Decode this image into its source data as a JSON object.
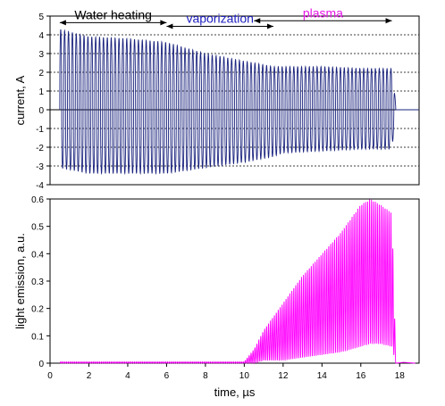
{
  "chart_data": [
    {
      "type": "line",
      "panel": "top",
      "xlabel": "",
      "ylabel": "current, A",
      "xlim": [
        0,
        19
      ],
      "ylim": [
        -4,
        5
      ],
      "yticks": [
        -4,
        -3,
        -2,
        -1,
        0,
        1,
        2,
        3,
        4,
        5
      ],
      "grid": "dashed horizontal",
      "series_color": "#1a237e",
      "envelope": {
        "t": [
          0.5,
          2,
          4,
          6,
          8,
          10,
          11.5,
          12,
          14,
          16,
          17.6,
          17.8
        ],
        "upper": [
          4.3,
          3.9,
          3.8,
          3.6,
          3.0,
          2.6,
          2.3,
          2.3,
          2.3,
          2.2,
          2.2,
          0.3
        ],
        "lower": [
          -3.1,
          -3.4,
          -3.4,
          -3.4,
          -3.1,
          -2.8,
          -2.5,
          -2.3,
          -2.2,
          -2.1,
          -2.1,
          -0.2
        ]
      },
      "annotations": [
        {
          "text": "Water heating",
          "color": "#000000",
          "x_start": 0.5,
          "x_end": 6.0,
          "y": 4.65
        },
        {
          "text": "vaporization",
          "color": "#1f1fbf",
          "x_start": 6.0,
          "x_end": 11.5,
          "y": 4.45
        },
        {
          "text": "plasma",
          "color": "#e619e6",
          "x_start": 10.5,
          "x_end": 17.6,
          "y": 4.75
        }
      ]
    },
    {
      "type": "line",
      "panel": "bottom",
      "xlabel": "time, µs",
      "ylabel": "light emission, a.u.",
      "xlim": [
        0,
        19
      ],
      "ylim": [
        0,
        0.6
      ],
      "xticks": [
        0,
        2,
        4,
        6,
        8,
        10,
        12,
        14,
        16,
        18
      ],
      "yticks": [
        0,
        0.1,
        0.2,
        0.3,
        0.4,
        0.5,
        0.6
      ],
      "series_color": "#ff00ff",
      "envelope": {
        "t": [
          0.5,
          10.0,
          10.5,
          11,
          12,
          13,
          14,
          15,
          16,
          16.5,
          17,
          17.6,
          17.8
        ],
        "upper": [
          0.005,
          0.005,
          0.05,
          0.12,
          0.22,
          0.32,
          0.4,
          0.48,
          0.58,
          0.6,
          0.58,
          0.55,
          0.02
        ],
        "lower": [
          0.0,
          0.0,
          0.0,
          0.01,
          0.01,
          0.02,
          0.03,
          0.04,
          0.06,
          0.07,
          0.07,
          0.06,
          0.0
        ]
      }
    }
  ]
}
